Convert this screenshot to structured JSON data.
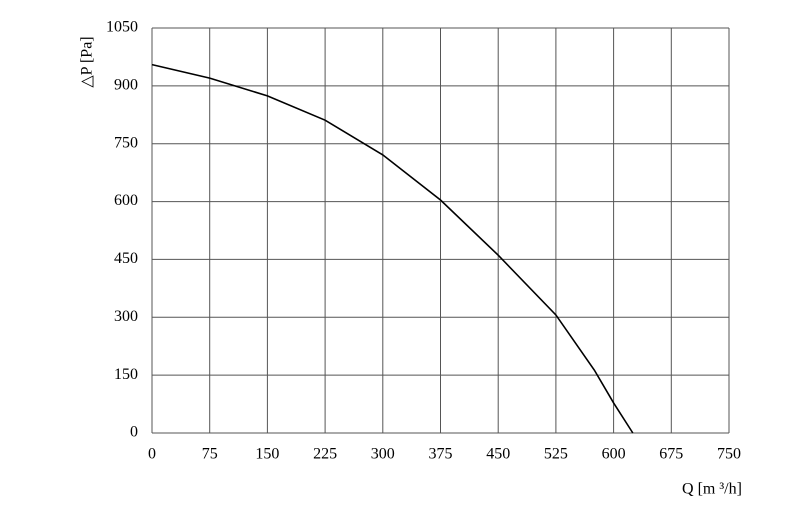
{
  "chart_data": {
    "type": "line",
    "x_label": "Q [m ³/h]",
    "y_label": "△P [Pa]",
    "xlim": [
      0,
      750
    ],
    "xticks": [
      0,
      75,
      150,
      225,
      300,
      375,
      450,
      525,
      600,
      675,
      750
    ],
    "ylim": [
      0,
      1050
    ],
    "yticks": [
      0,
      150,
      300,
      450,
      600,
      750,
      900,
      1050
    ],
    "grid": true,
    "series": [
      {
        "color": "#000000",
        "x": [
          0,
          75,
          150,
          225,
          300,
          375,
          450,
          525,
          575,
          600,
          625
        ],
        "values": [
          955,
          920,
          874,
          811,
          721,
          604,
          461,
          306,
          163,
          78,
          0
        ]
      }
    ]
  }
}
